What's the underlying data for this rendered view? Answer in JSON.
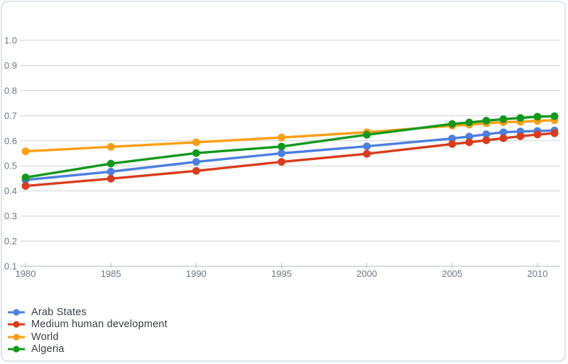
{
  "chart_data": {
    "type": "line",
    "title": "",
    "xlabel": "",
    "ylabel": "",
    "xlim": [
      1980,
      2011
    ],
    "ylim": [
      0.1,
      1.0
    ],
    "grid": true,
    "legend_position": "bottom-left",
    "x": [
      1980,
      1985,
      1990,
      1995,
      2000,
      2005,
      2006,
      2007,
      2008,
      2009,
      2010,
      2011
    ],
    "xticks": [
      1980,
      1985,
      1990,
      1995,
      2000,
      2005,
      2010
    ],
    "yticks": [
      "1.0",
      "0.9",
      "0.8",
      "0.7",
      "0.6",
      "0.5",
      "0.4",
      "0.3",
      "0.2",
      "0.1"
    ],
    "series": [
      {
        "name": "Arab States",
        "color": "#4c7fe0",
        "values": [
          0.444,
          0.477,
          0.516,
          0.55,
          0.578,
          0.609,
          0.617,
          0.626,
          0.634,
          0.637,
          0.639,
          0.641
        ]
      },
      {
        "name": "Medium human development",
        "color": "#d93c1c",
        "values": [
          0.42,
          0.449,
          0.48,
          0.516,
          0.548,
          0.587,
          0.594,
          0.602,
          0.61,
          0.618,
          0.625,
          0.63
        ]
      },
      {
        "name": "World",
        "color": "#ff9e10",
        "values": [
          0.558,
          0.576,
          0.594,
          0.613,
          0.634,
          0.66,
          0.664,
          0.67,
          0.674,
          0.676,
          0.679,
          0.682
        ]
      },
      {
        "name": "Algeria",
        "color": "#12991b",
        "values": [
          0.454,
          0.509,
          0.551,
          0.577,
          0.624,
          0.667,
          0.673,
          0.68,
          0.686,
          0.691,
          0.696,
          0.698
        ]
      }
    ],
    "colors": {
      "gridline": "#cdd1d5",
      "baseline": "#b2bac2",
      "tick": "#b9c2ca",
      "axis_text": "#6d7884",
      "border": "#dbe4eb"
    }
  }
}
